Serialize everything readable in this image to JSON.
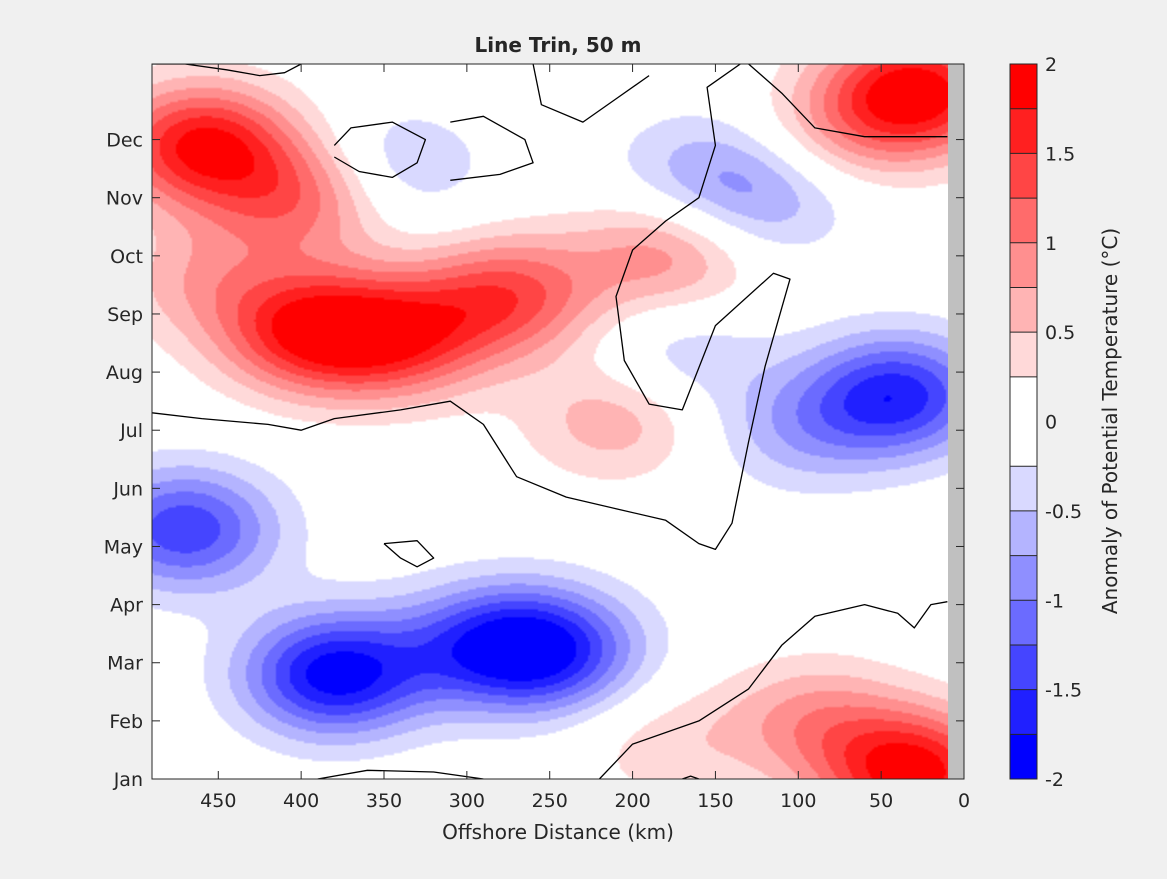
{
  "chart_data": {
    "type": "contourf",
    "title": "Line Trin, 50 m",
    "xlabel": "Offshore Distance (km)",
    "ylabel": "",
    "xlim": [
      490,
      0
    ],
    "x_reversed": true,
    "x_ticks": [
      450,
      400,
      350,
      300,
      250,
      200,
      150,
      100,
      50,
      0
    ],
    "y_ticks": [
      "Jan",
      "Feb",
      "Mar",
      "Apr",
      "May",
      "Jun",
      "Jul",
      "Aug",
      "Sep",
      "Oct",
      "Nov",
      "Dec"
    ],
    "grid": false,
    "data_extent_km": [
      490,
      10
    ],
    "colorbar": {
      "label": "Anomaly of Potential Temperature (°C)",
      "ticks": [
        2,
        1.5,
        1,
        0.5,
        0,
        -0.5,
        -1,
        -1.5,
        -2
      ],
      "tick_labels": [
        "2",
        "1.5",
        "1",
        "0.5",
        "0",
        "-0.5",
        "-1",
        "-1.5",
        "-2"
      ],
      "levels": [
        -2,
        -1.75,
        -1.5,
        -1.25,
        -1,
        -0.75,
        -0.5,
        -0.25,
        0.25,
        0.5,
        0.75,
        1,
        1.25,
        1.5,
        1.75,
        2
      ],
      "colors": [
        "#0000ff",
        "#2020ff",
        "#4545ff",
        "#6b6bff",
        "#8f8fff",
        "#b4b4ff",
        "#d9d9ff",
        "#ffffff",
        "#ffd9d9",
        "#ffb4b4",
        "#ff8f8f",
        "#ff6b6b",
        "#ff4545",
        "#ff2020",
        "#ff0000"
      ]
    },
    "anomaly_field": {
      "background": 0.0,
      "features": [
        {
          "x_km": 460,
          "month": 10.9,
          "value": 1.8
        },
        {
          "x_km": 400,
          "month": 10.0,
          "value": 1.1
        },
        {
          "x_km": 395,
          "month": 7.7,
          "value": 1.65
        },
        {
          "x_km": 340,
          "month": 7.6,
          "value": 1.35
        },
        {
          "x_km": 275,
          "month": 8.3,
          "value": 1.3
        },
        {
          "x_km": 180,
          "month": 9.0,
          "value": 0.9
        },
        {
          "x_km": 210,
          "month": 6.2,
          "value": 0.7
        },
        {
          "x_km": 30,
          "month": 11.8,
          "value": 2.0
        },
        {
          "x_km": 80,
          "month": 11.0,
          "value": 0.5
        },
        {
          "x_km": 460,
          "month": 8.6,
          "value": 0.6
        },
        {
          "x_km": 345,
          "month": 10.5,
          "value": -0.6
        },
        {
          "x_km": 160,
          "month": 10.5,
          "value": -0.5
        },
        {
          "x_km": 120,
          "month": 10.0,
          "value": -0.7
        },
        {
          "x_km": 175,
          "month": 7.3,
          "value": -0.5
        },
        {
          "x_km": 470,
          "month": 4.3,
          "value": -1.45
        },
        {
          "x_km": 380,
          "month": 1.8,
          "value": -1.9
        },
        {
          "x_km": 290,
          "month": 2.3,
          "value": -1.1
        },
        {
          "x_km": 250,
          "month": 2.2,
          "value": -1.5
        },
        {
          "x_km": 40,
          "month": 6.6,
          "value": -1.6
        },
        {
          "x_km": 100,
          "month": 6.0,
          "value": -0.6
        },
        {
          "x_km": 30,
          "month": 0.1,
          "value": 1.9
        },
        {
          "x_km": 90,
          "month": 1.0,
          "value": 0.8
        },
        {
          "x_km": 180,
          "month": 0.6,
          "value": 0.4
        }
      ]
    },
    "zero_contours_months": [
      [
        [
          490,
          12.3
        ],
        [
          470,
          12.3
        ],
        [
          445,
          12.2
        ],
        [
          425,
          12.1
        ],
        [
          410,
          12.15
        ],
        [
          400,
          12.3
        ]
      ],
      [
        [
          490,
          6.3
        ],
        [
          460,
          6.2
        ],
        [
          420,
          6.1
        ],
        [
          400,
          6.0
        ],
        [
          380,
          6.2
        ],
        [
          340,
          6.35
        ],
        [
          310,
          6.5
        ],
        [
          290,
          6.1
        ],
        [
          270,
          5.2
        ],
        [
          240,
          4.85
        ],
        [
          210,
          4.65
        ],
        [
          180,
          4.45
        ],
        [
          160,
          4.05
        ],
        [
          150,
          3.95
        ],
        [
          140,
          4.4
        ],
        [
          130,
          5.8
        ],
        [
          120,
          7.1
        ],
        [
          110,
          8.1
        ],
        [
          105,
          8.6
        ],
        [
          115,
          8.7
        ],
        [
          150,
          7.8
        ],
        [
          170,
          6.35
        ],
        [
          190,
          6.45
        ],
        [
          205,
          7.2
        ],
        [
          210,
          8.3
        ],
        [
          200,
          9.1
        ],
        [
          180,
          9.6
        ],
        [
          160,
          10.0
        ],
        [
          150,
          10.9
        ],
        [
          155,
          11.9
        ],
        [
          135,
          12.3
        ]
      ],
      [
        [
          260,
          12.3
        ],
        [
          255,
          11.6
        ],
        [
          230,
          11.3
        ],
        [
          210,
          11.7
        ],
        [
          190,
          12.1
        ]
      ],
      [
        [
          310,
          10.3
        ],
        [
          280,
          10.4
        ],
        [
          260,
          10.6
        ],
        [
          265,
          11.0
        ],
        [
          290,
          11.4
        ],
        [
          310,
          11.3
        ]
      ],
      [
        [
          380,
          10.7
        ],
        [
          365,
          10.45
        ],
        [
          345,
          10.35
        ],
        [
          330,
          10.6
        ],
        [
          325,
          11.0
        ],
        [
          345,
          11.3
        ],
        [
          370,
          11.2
        ],
        [
          380,
          10.9
        ]
      ],
      [
        [
          130,
          12.3
        ],
        [
          110,
          11.8
        ],
        [
          90,
          11.2
        ],
        [
          60,
          11.05
        ],
        [
          10,
          11.05
        ]
      ],
      [
        [
          350,
          4.05
        ],
        [
          340,
          3.8
        ],
        [
          330,
          3.65
        ],
        [
          320,
          3.8
        ],
        [
          330,
          4.1
        ],
        [
          350,
          4.05
        ]
      ],
      [
        [
          390,
          0.0
        ],
        [
          360,
          0.15
        ],
        [
          320,
          0.12
        ],
        [
          290,
          0.0
        ]
      ],
      [
        [
          220,
          0.0
        ],
        [
          200,
          0.6
        ],
        [
          160,
          1.0
        ],
        [
          130,
          1.55
        ],
        [
          110,
          2.3
        ],
        [
          90,
          2.8
        ],
        [
          60,
          3.0
        ],
        [
          40,
          2.85
        ],
        [
          30,
          2.6
        ],
        [
          20,
          3.0
        ],
        [
          10,
          3.05
        ]
      ],
      [
        [
          170,
          0.0
        ],
        [
          165,
          0.05
        ],
        [
          160,
          0.0
        ]
      ]
    ]
  }
}
